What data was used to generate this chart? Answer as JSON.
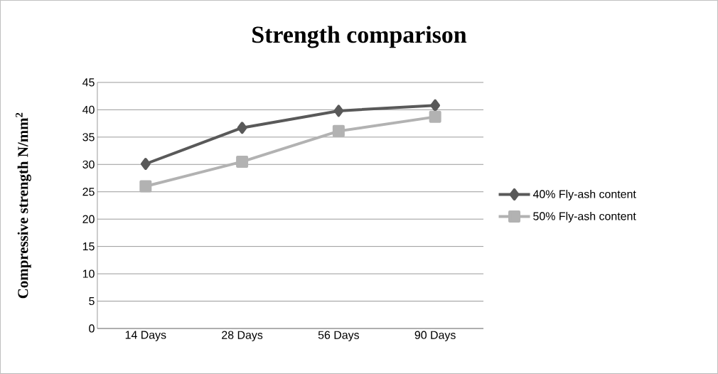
{
  "chart_data": {
    "type": "line",
    "title": "Strength comparison",
    "ylabel": "Compressive strength N/mm$^{2}$",
    "categories": [
      "14 Days",
      "28 Days",
      "56 Days",
      "90 Days"
    ],
    "series": [
      {
        "name": "40% Fly-ash content",
        "color": "#595959",
        "marker": "diamond",
        "values": [
          30.1,
          36.7,
          39.8,
          40.8
        ]
      },
      {
        "name": "50% Fly-ash content",
        "color": "#b2b2b2",
        "marker": "square",
        "values": [
          26.0,
          30.5,
          36.1,
          38.7
        ]
      }
    ],
    "ylim": [
      0,
      45
    ],
    "yticks": [
      0,
      5,
      10,
      15,
      20,
      25,
      30,
      35,
      40,
      45
    ],
    "grid": "y",
    "legend": "right"
  }
}
